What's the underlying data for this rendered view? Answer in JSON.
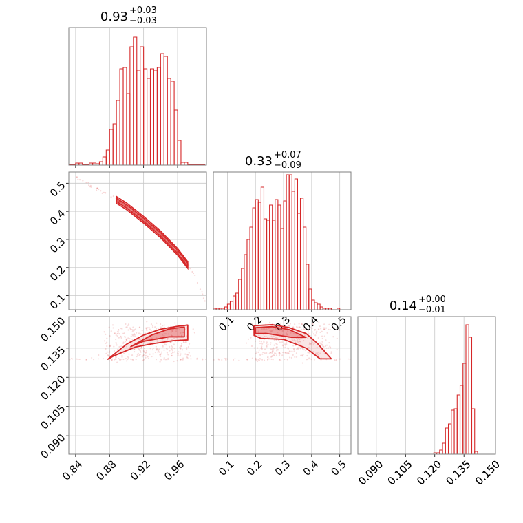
{
  "colors": {
    "accent": "#d62728",
    "grid": "#c8c8c8",
    "frame": "#7f7f7f"
  },
  "chart_data": [
    {
      "type": "histogram",
      "title": {
        "main": "0.93",
        "plus": "+0.03",
        "minus": "−0.03"
      },
      "xlim": [
        0.832,
        0.994
      ],
      "x_ticks": [
        0.84,
        0.88,
        0.92,
        0.96
      ],
      "bin_edges_start": 0.832,
      "bin_width": 0.004,
      "counts": [
        0.5,
        0.5,
        1.5,
        1.5,
        0.5,
        0.5,
        1.5,
        1.5,
        1,
        2.5,
        6,
        11,
        26,
        30,
        47,
        70,
        71,
        52,
        86,
        93,
        69,
        86,
        70,
        63,
        70,
        69,
        71,
        81,
        79,
        63,
        61,
        40,
        18,
        2,
        2,
        0.5,
        0.5,
        0.5,
        0.5,
        0.5
      ],
      "ymax": 100
    },
    {
      "type": "histogram",
      "title": {
        "main": "0.33",
        "plus": "+0.07",
        "minus": "−0.09"
      },
      "xlim": [
        0.05,
        0.54
      ],
      "x_ticks": [
        0.1,
        0.2,
        0.3,
        0.4,
        0.5
      ],
      "x_tick_labels": [
        "0.1",
        "0.2",
        "0.3",
        "0.4",
        "0.5"
      ],
      "bin_edges_start": 0.05,
      "bin_width": 0.01,
      "counts": [
        1,
        1,
        1,
        1,
        2,
        4,
        6,
        10,
        12,
        22,
        30,
        40,
        51,
        60,
        74,
        80,
        78,
        89,
        66,
        65,
        76,
        65,
        80,
        76,
        59,
        79,
        98,
        98,
        86,
        95,
        70,
        81,
        60,
        33,
        15,
        7,
        5,
        4,
        2,
        1,
        1,
        1,
        0,
        0,
        1
      ],
      "ymax": 100
    },
    {
      "type": "histogram",
      "title": {
        "main": "0.14",
        "plus": "+0.00",
        "minus": "−0.01"
      },
      "xlim": [
        0.0805,
        0.1512
      ],
      "x_ticks": [
        0.09,
        0.105,
        0.12,
        0.135,
        0.15
      ],
      "x_tick_labels": [
        "0.090",
        "0.105",
        "0.120",
        "0.135",
        "0.150"
      ],
      "bin_edges_start": 0.1195,
      "bin_width": 0.0015,
      "counts": [
        1,
        1,
        3,
        8,
        19,
        22,
        32,
        33,
        43,
        50,
        66,
        94,
        85,
        33,
        2
      ],
      "ymax": 100
    },
    {
      "type": "scatter-contour",
      "xlim": [
        0.832,
        0.994
      ],
      "ylim": [
        0.05,
        0.54
      ],
      "x_ticks": [
        0.84,
        0.88,
        0.92,
        0.96
      ],
      "y_ticks": [
        0.1,
        0.2,
        0.3,
        0.4,
        0.5
      ],
      "y_tick_labels": [
        "0.1",
        "0.2",
        "0.3",
        "0.4",
        "0.5"
      ],
      "curve": [
        [
          0.84,
          0.522
        ],
        [
          0.86,
          0.488
        ],
        [
          0.88,
          0.456
        ],
        [
          0.9,
          0.418
        ],
        [
          0.92,
          0.37
        ],
        [
          0.94,
          0.318
        ],
        [
          0.96,
          0.256
        ],
        [
          0.975,
          0.197
        ],
        [
          0.985,
          0.14
        ],
        [
          0.992,
          0.08
        ]
      ],
      "dense_range": [
        0.888,
        0.972
      ]
    },
    {
      "type": "scatter-contour",
      "xlim": [
        0.832,
        0.994
      ],
      "ylim": [
        0.0805,
        0.1512
      ],
      "x_ticks": [
        0.84,
        0.88,
        0.92,
        0.96
      ],
      "x_tick_labels": [
        "0.84",
        "0.88",
        "0.92",
        "0.96"
      ],
      "y_ticks": [
        0.09,
        0.105,
        0.12,
        0.135,
        0.15
      ],
      "y_tick_labels": [
        "0.090",
        "0.105",
        "0.120",
        "0.135",
        "0.150"
      ],
      "outer_contour": [
        [
          0.878,
          0.1293
        ],
        [
          0.9,
          0.137
        ],
        [
          0.92,
          0.1417
        ],
        [
          0.94,
          0.1447
        ],
        [
          0.96,
          0.1462
        ],
        [
          0.972,
          0.1468
        ],
        [
          0.972,
          0.1392
        ],
        [
          0.955,
          0.1388
        ],
        [
          0.93,
          0.1372
        ],
        [
          0.91,
          0.1355
        ],
        [
          0.885,
          0.131
        ]
      ],
      "inner_contour": [
        [
          0.905,
          0.1358
        ],
        [
          0.93,
          0.1418
        ],
        [
          0.95,
          0.1448
        ],
        [
          0.968,
          0.1458
        ],
        [
          0.968,
          0.1408
        ],
        [
          0.95,
          0.1408
        ],
        [
          0.92,
          0.1385
        ]
      ]
    },
    {
      "type": "scatter-contour",
      "xlim": [
        0.05,
        0.54
      ],
      "ylim": [
        0.0805,
        0.1512
      ],
      "x_ticks": [
        0.1,
        0.2,
        0.3,
        0.4,
        0.5
      ],
      "x_tick_labels": [
        "0.1",
        "0.2",
        "0.3",
        "0.4",
        "0.5"
      ],
      "y_ticks": [
        0.09,
        0.105,
        0.12,
        0.135,
        0.15
      ],
      "outer_contour": [
        [
          0.195,
          0.1465
        ],
        [
          0.26,
          0.147
        ],
        [
          0.32,
          0.1455
        ],
        [
          0.38,
          0.1425
        ],
        [
          0.42,
          0.1375
        ],
        [
          0.47,
          0.1295
        ],
        [
          0.43,
          0.1295
        ],
        [
          0.38,
          0.135
        ],
        [
          0.3,
          0.1395
        ],
        [
          0.22,
          0.14
        ],
        [
          0.195,
          0.1415
        ]
      ],
      "inner_contour": [
        [
          0.2,
          0.1455
        ],
        [
          0.26,
          0.146
        ],
        [
          0.32,
          0.1445
        ],
        [
          0.38,
          0.1405
        ],
        [
          0.33,
          0.1405
        ],
        [
          0.24,
          0.1425
        ],
        [
          0.2,
          0.1425
        ]
      ]
    },
    {
      "type": "axis",
      "x_ticks": [
        0.09,
        0.105,
        0.12,
        0.135,
        0.15
      ],
      "x_tick_labels": [
        "0.090",
        "0.105",
        "0.120",
        "0.135",
        "0.150"
      ]
    }
  ]
}
